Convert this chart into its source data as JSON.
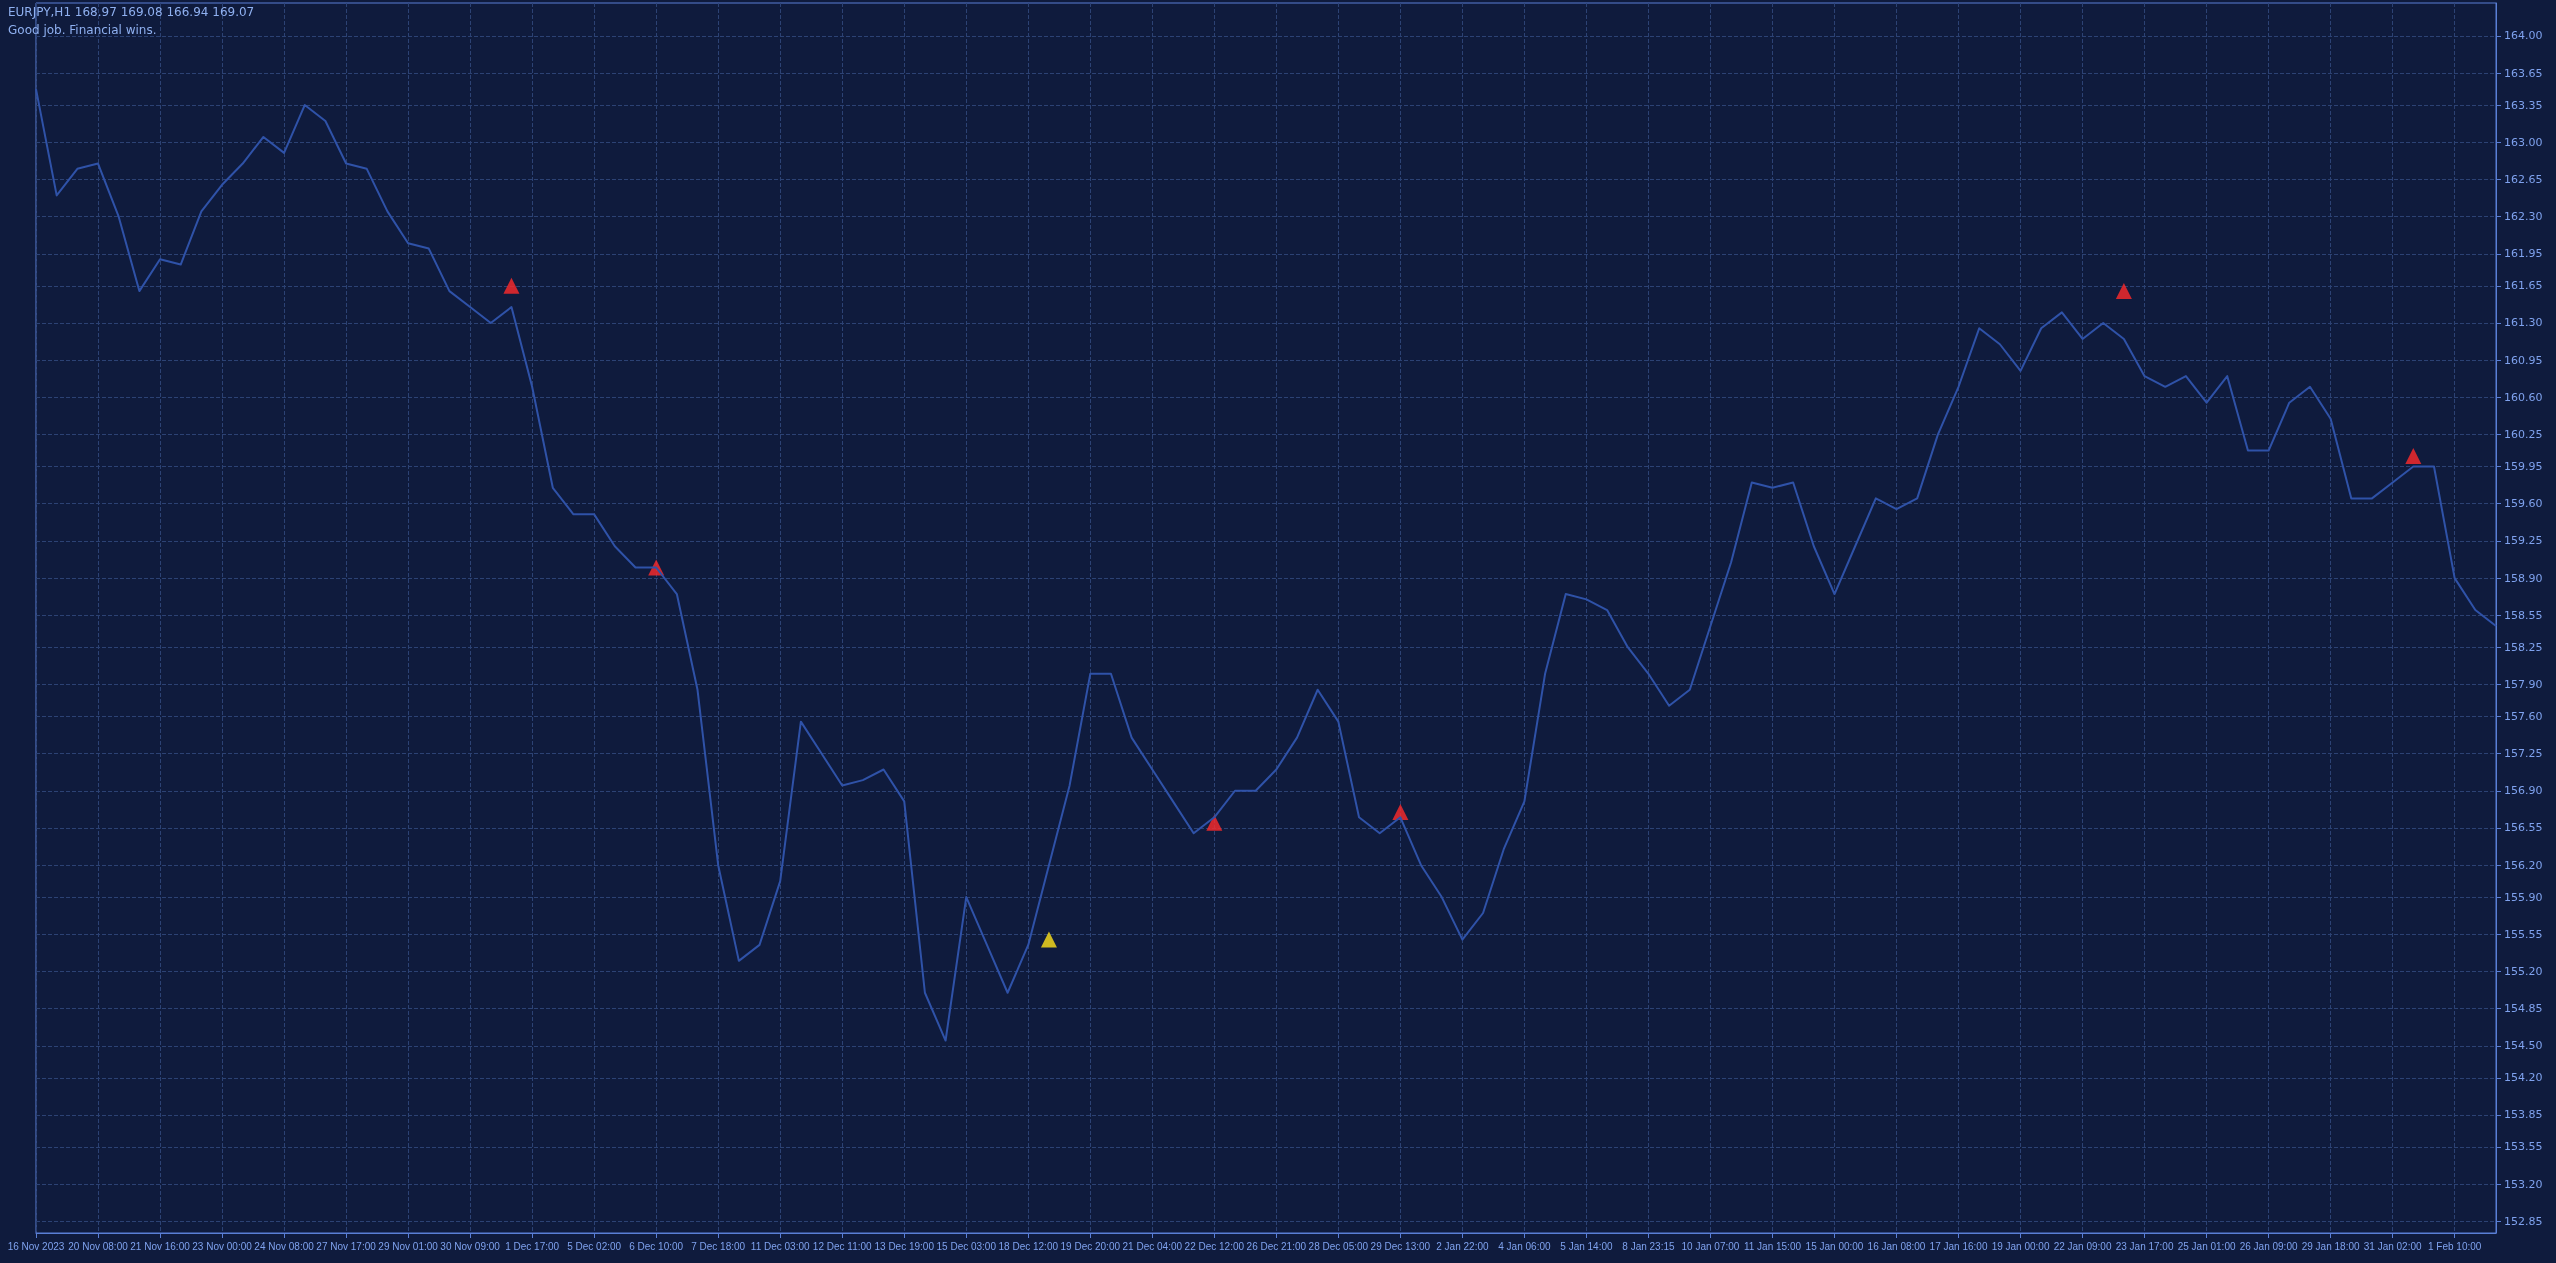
{
  "chart_data": {
    "type": "line",
    "title": "EURJPY,H1  168.97 169.08 166.94 169.07",
    "annotations": [
      "Good job. Financial wins."
    ],
    "categories": [
      "16 Nov 2023",
      null,
      null,
      "20 Nov 08:00",
      null,
      null,
      "21 Nov 16:00",
      null,
      null,
      "23 Nov 00:00",
      null,
      null,
      "24 Nov 08:00",
      null,
      null,
      "27 Nov 17:00",
      null,
      null,
      "29 Nov 01:00",
      null,
      null,
      "30 Nov 09:00",
      null,
      null,
      "1 Dec 17:00",
      null,
      null,
      "5 Dec 02:00",
      null,
      null,
      "6 Dec 10:00",
      null,
      null,
      "7 Dec 18:00",
      null,
      null,
      "11 Dec 03:00",
      null,
      null,
      "12 Dec 11:00",
      null,
      null,
      "13 Dec 19:00",
      null,
      null,
      "15 Dec 03:00",
      null,
      null,
      "18 Dec 12:00",
      null,
      null,
      "19 Dec 20:00",
      null,
      null,
      "21 Dec 04:00",
      null,
      null,
      "22 Dec 12:00",
      null,
      null,
      "26 Dec 21:00",
      null,
      null,
      "28 Dec 05:00",
      null,
      null,
      "29 Dec 13:00",
      null,
      null,
      "2 Jan 22:00",
      null,
      null,
      "4 Jan 06:00",
      null,
      null,
      "5 Jan 14:00",
      null,
      null,
      "8 Jan 23:15",
      null,
      null,
      "10 Jan 07:00",
      null,
      null,
      "11 Jan 15:00",
      null,
      null,
      "15 Jan 00:00",
      null,
      null,
      "16 Jan 08:00",
      null,
      null,
      "17 Jan 16:00",
      null,
      null,
      "19 Jan 00:00",
      null,
      null,
      "22 Jan 09:00",
      null,
      null,
      "23 Jan 17:00",
      null,
      null,
      "25 Jan 01:00",
      null,
      null,
      "26 Jan 09:00",
      null,
      null,
      "29 Jan 18:00",
      null,
      null,
      "31 Jan 02:00",
      null,
      null,
      "1 Feb 10:00",
      null,
      null
    ],
    "series": [
      {
        "color": "#2f52a8",
        "values": [
          163.5,
          162.5,
          162.75,
          162.8,
          162.3,
          161.6,
          161.9,
          161.85,
          162.35,
          162.6,
          162.8,
          163.05,
          162.9,
          163.35,
          163.2,
          162.8,
          162.75,
          162.35,
          162.05,
          162.0,
          161.6,
          161.45,
          161.3,
          161.45,
          160.7,
          159.75,
          159.5,
          159.5,
          159.2,
          159.0,
          159.0,
          158.75,
          157.85,
          156.2,
          155.3,
          155.45,
          156.05,
          157.55,
          157.25,
          156.95,
          157.0,
          157.1,
          156.8,
          155.0,
          154.55,
          155.9,
          155.45,
          155.0,
          155.45,
          156.2,
          156.95,
          158.0,
          158.0,
          157.4,
          157.1,
          156.8,
          156.5,
          156.65,
          156.9,
          156.9,
          157.1,
          157.4,
          157.85,
          157.55,
          156.65,
          156.5,
          156.65,
          156.2,
          155.9,
          155.5,
          155.75,
          156.35,
          156.8,
          158.0,
          158.75,
          158.7,
          158.6,
          158.25,
          158.0,
          157.7,
          157.85,
          158.45,
          159.05,
          159.8,
          159.75,
          159.8,
          159.2,
          158.75,
          159.2,
          159.65,
          159.55,
          159.65,
          160.25,
          160.7,
          161.25,
          161.1,
          160.85,
          161.25,
          161.4,
          161.15,
          161.3,
          161.15,
          160.8,
          160.7,
          160.8,
          160.55,
          160.8,
          160.1,
          160.1,
          160.55,
          160.7,
          160.4,
          159.65,
          159.65,
          159.8,
          159.95,
          159.95,
          158.9,
          158.6,
          158.45
        ]
      },
      {
        "type": "scatter",
        "marker": "triangle",
        "color": "#ff2a2a",
        "values": [
          null,
          null,
          null,
          null,
          null,
          null,
          null,
          null,
          null,
          null,
          null,
          null,
          null,
          null,
          null,
          null,
          null,
          null,
          null,
          null,
          null,
          null,
          null,
          161.65,
          null,
          null,
          null,
          null,
          null,
          null,
          159.0,
          null,
          null,
          null,
          null,
          null,
          null,
          null,
          null,
          null,
          null,
          null,
          null,
          null,
          null,
          null,
          null,
          null,
          null,
          null,
          null,
          null,
          null,
          null,
          null,
          null,
          null,
          156.6,
          null,
          null,
          null,
          null,
          null,
          null,
          null,
          null,
          156.7,
          null,
          null,
          null,
          null,
          null,
          null,
          null,
          null,
          null,
          null,
          null,
          null,
          null,
          null,
          null,
          null,
          null,
          null,
          null,
          null,
          null,
          null,
          null,
          null,
          null,
          null,
          null,
          null,
          null,
          null,
          null,
          null,
          null,
          null,
          161.6,
          null,
          null,
          null,
          null,
          null,
          null,
          null,
          null,
          null,
          null,
          null,
          null,
          null,
          160.05,
          null,
          null,
          null,
          null
        ]
      },
      {
        "type": "scatter",
        "marker": "triangle",
        "color": "#ffe21a",
        "values": [
          null,
          null,
          null,
          null,
          null,
          null,
          null,
          null,
          null,
          null,
          null,
          null,
          null,
          null,
          null,
          null,
          null,
          null,
          null,
          null,
          null,
          null,
          null,
          null,
          null,
          null,
          null,
          null,
          null,
          null,
          null,
          null,
          null,
          null,
          null,
          null,
          null,
          null,
          null,
          null,
          null,
          null,
          null,
          null,
          null,
          null,
          null,
          null,
          null,
          155.5,
          null,
          null,
          null,
          null,
          null,
          null,
          null,
          null,
          null,
          null,
          null,
          null,
          null,
          null,
          null,
          null,
          null,
          null,
          null,
          null,
          null,
          null,
          null,
          null,
          null,
          null,
          null,
          null,
          null,
          null,
          null,
          null,
          null,
          null,
          null,
          null,
          null,
          null,
          null,
          null,
          null,
          null,
          null,
          null,
          null,
          null,
          null,
          null,
          null,
          null,
          null,
          null,
          null,
          null,
          null,
          null,
          null,
          null,
          null,
          null,
          null,
          null,
          null,
          null,
          null,
          null,
          null,
          null,
          null,
          null
        ]
      }
    ],
    "ylim": [
      152.74,
      164.31
    ],
    "yticks": [
      152.85,
      {
        "value": 153.2,
        "label": "153.20"
      },
      153.55,
      153.85,
      {
        "value": 154.2,
        "label": "154.20"
      },
      {
        "value": 154.5,
        "label": "154.50"
      },
      154.85,
      {
        "value": 155.2,
        "label": "155.20"
      },
      155.55,
      {
        "value": 155.9,
        "label": "155.90"
      },
      {
        "value": 156.2,
        "label": "156.20"
      },
      156.55,
      {
        "value": 156.9,
        "label": "156.90"
      },
      157.25,
      {
        "value": 157.6,
        "label": "157.60"
      },
      {
        "value": 157.9,
        "label": "157.90"
      },
      158.25,
      158.55,
      {
        "value": 158.9,
        "label": "158.90"
      },
      159.25,
      {
        "value": 159.6,
        "label": "159.60"
      },
      159.95,
      160.25,
      {
        "value": 160.6,
        "label": "160.60"
      },
      160.95,
      {
        "value": 161.3,
        "label": "161.30"
      },
      161.65,
      161.95,
      {
        "value": 162.3,
        "label": "162.30"
      },
      162.65,
      {
        "value": 163.0,
        "label": "163.00"
      },
      163.35,
      163.65,
      {
        "value": 164.0,
        "label": "164.00"
      }
    ],
    "grid": true,
    "marker": "none",
    "line_style": "solid"
  }
}
